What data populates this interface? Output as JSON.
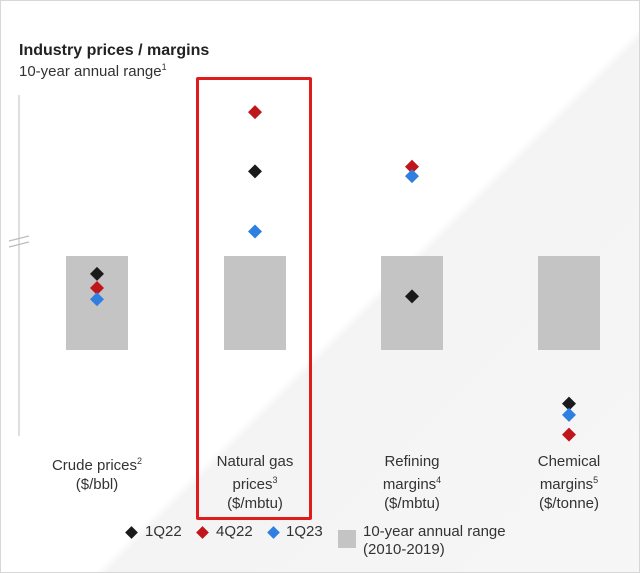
{
  "title": "Industry prices / margins",
  "subtitle": "10-year annual range",
  "subtitle_sup": "1",
  "chart_data": {
    "type": "scatter",
    "categories": [
      {
        "label_lines": [
          "Crude prices",
          "($/bbl)"
        ],
        "sup": "2",
        "box": [
          0,
          1
        ],
        "points": {
          "1Q22": 0.81,
          "4Q22": 0.66,
          "1Q23": 0.54
        }
      },
      {
        "label_lines": [
          "Natural gas",
          "prices",
          "($/mbtu)"
        ],
        "sup": "3",
        "box": [
          0,
          1
        ],
        "points": {
          "1Q22": 1.9,
          "4Q22": 2.53,
          "1Q23": 1.26
        }
      },
      {
        "label_lines": [
          "Refining",
          "margins",
          "($/mbtu)"
        ],
        "sup": "4",
        "box": [
          0,
          1
        ],
        "points": {
          "1Q22": 0.57,
          "4Q22": 1.95,
          "1Q23": 1.85
        }
      },
      {
        "label_lines": [
          "Chemical",
          "margins",
          "($/tonne)"
        ],
        "sup": "5",
        "box": [
          0,
          1
        ],
        "points": {
          "1Q22": -0.57,
          "4Q22": -0.9,
          "1Q23": -0.69
        }
      }
    ],
    "series": [
      {
        "name": "1Q22",
        "color": "#1a1a1a"
      },
      {
        "name": "4Q22",
        "color": "#c0151b"
      },
      {
        "name": "1Q23",
        "color": "#2f7fe0"
      }
    ],
    "range_label_lines": [
      "10-year annual range",
      "(2010-2019)"
    ],
    "range_color": "#c4c4c4",
    "ylim": [
      -1.5,
      2.75
    ],
    "highlight_category": 1
  }
}
